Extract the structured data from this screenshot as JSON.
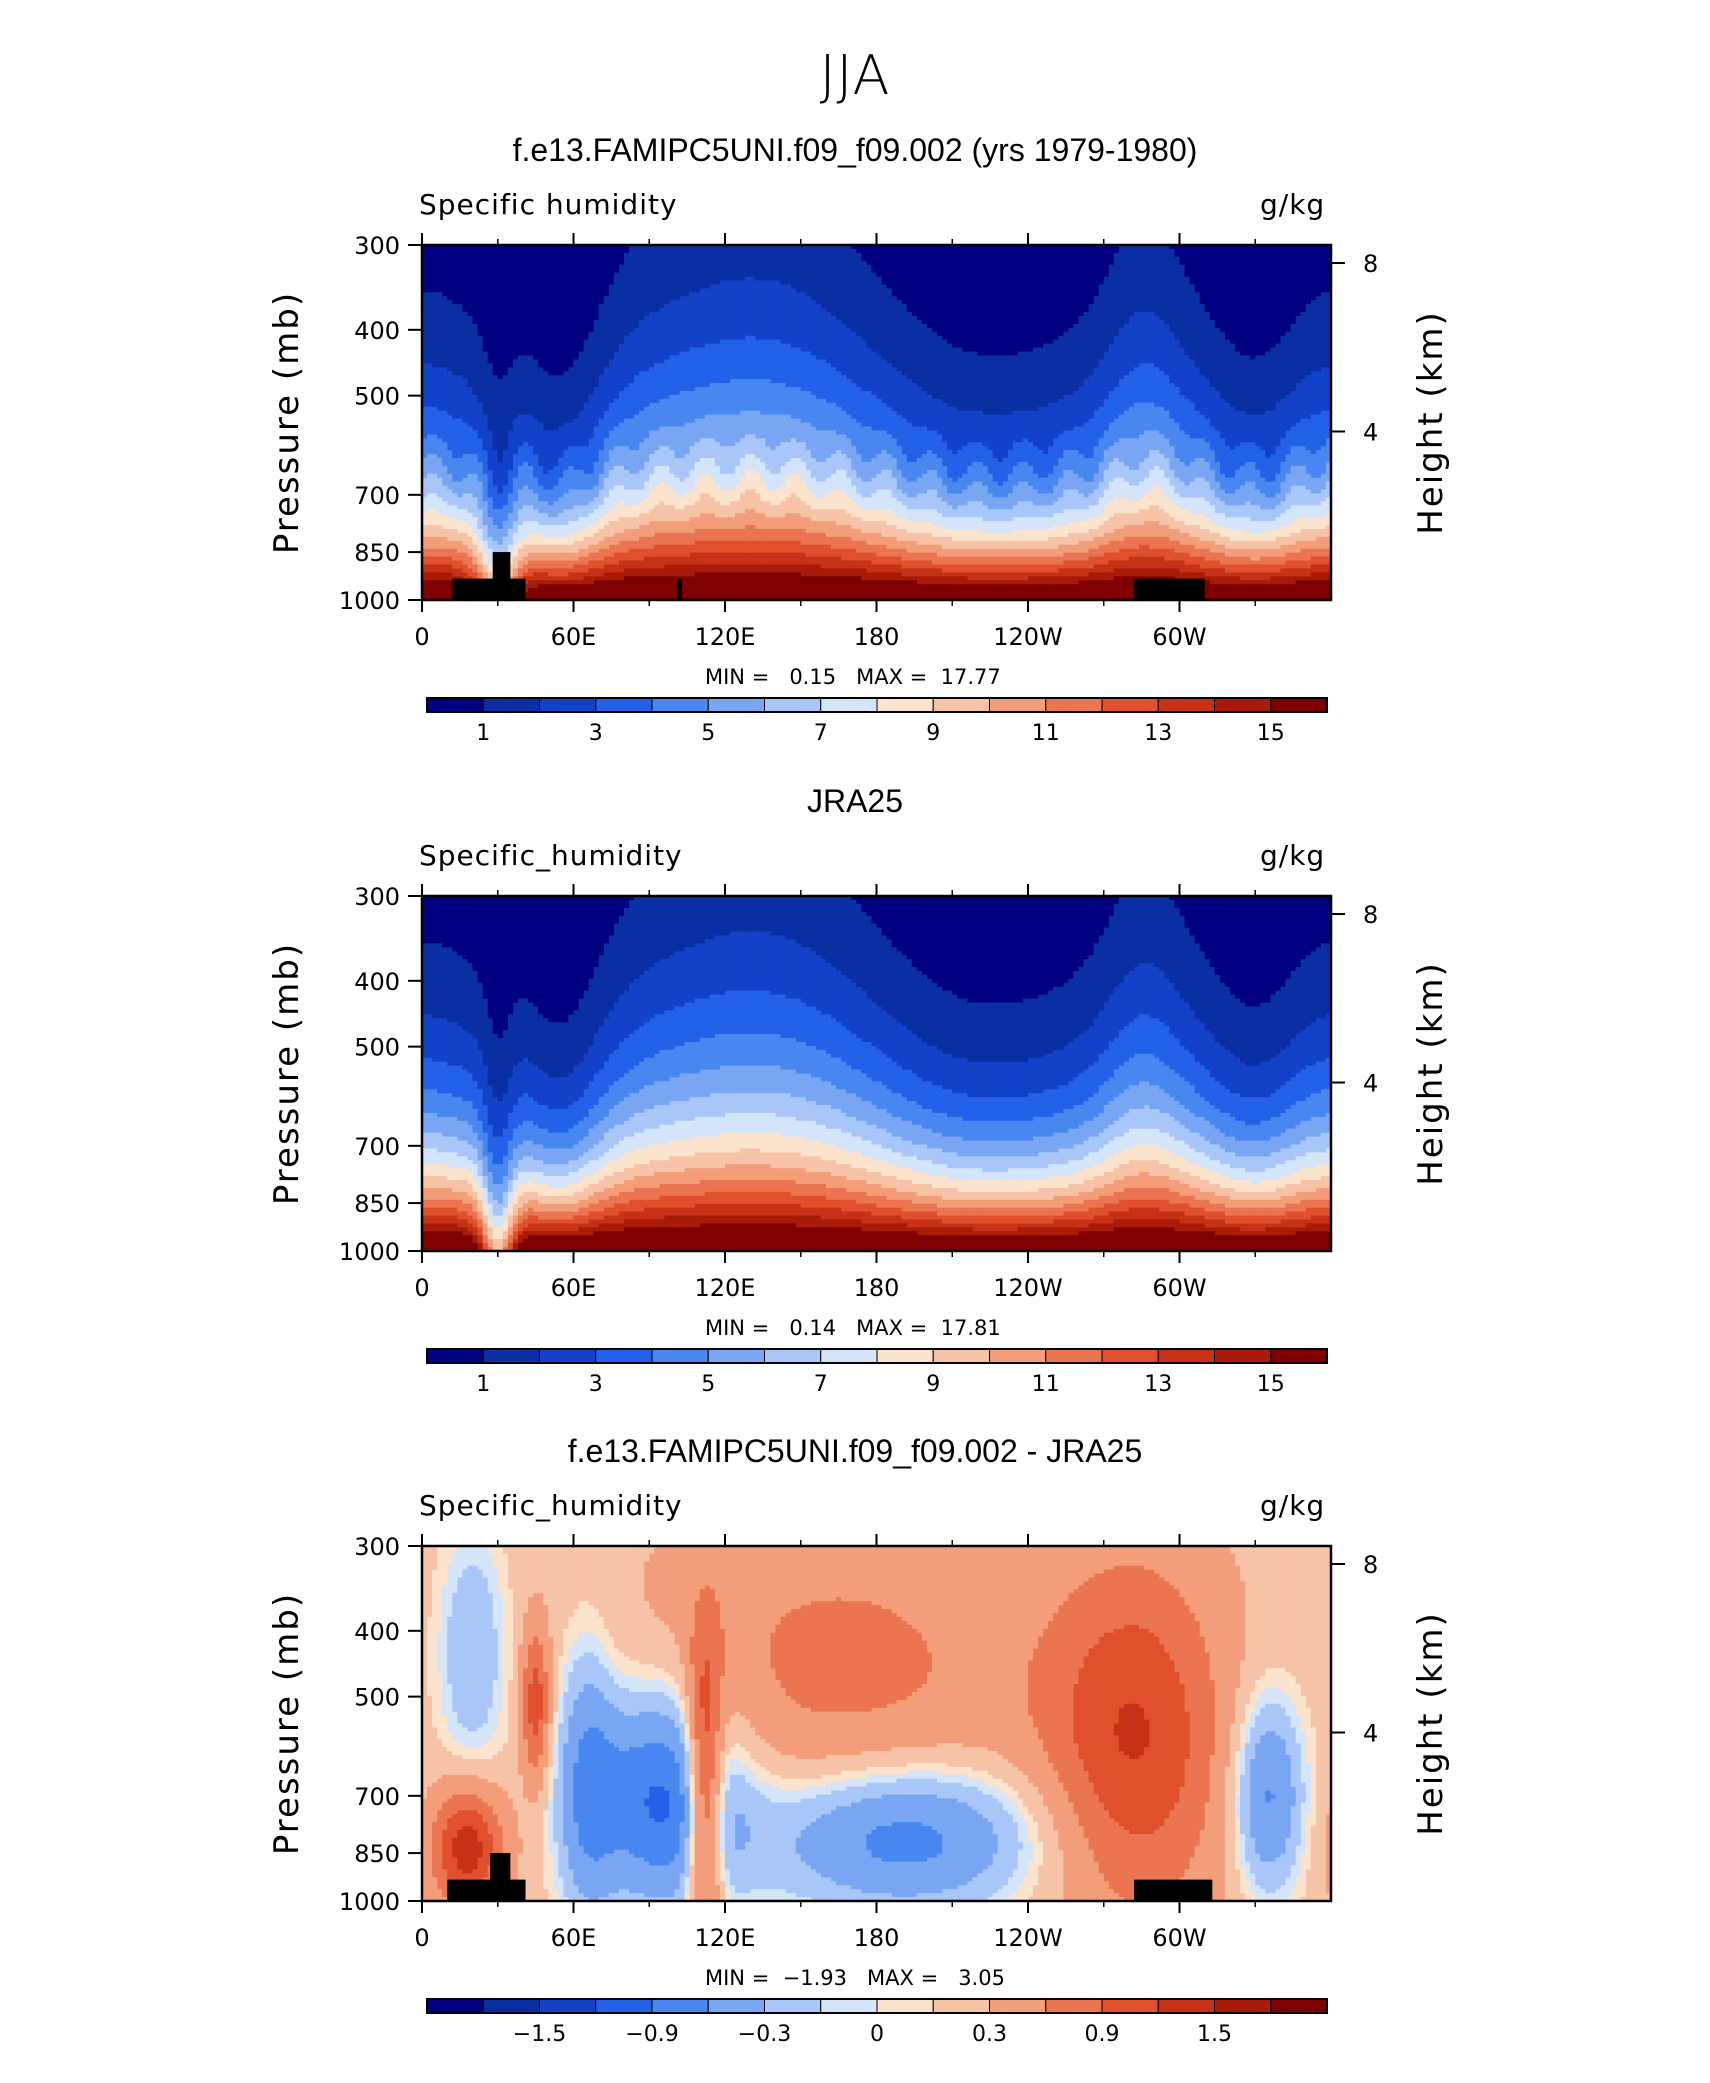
{
  "main_title": "JJA",
  "colors": {
    "seq": [
      "#000080",
      "#0a2fa3",
      "#1341c8",
      "#2362e8",
      "#4886f0",
      "#79a6f3",
      "#a8c6f7",
      "#d4e4f9",
      "#fbe3cd",
      "#f7c3a6",
      "#f39d7b",
      "#eb7550",
      "#e0502d",
      "#c73217",
      "#a81a09",
      "#7f0000"
    ],
    "div": [
      "#000080",
      "#0a2fa3",
      "#1341c8",
      "#2362e8",
      "#4886f0",
      "#79a6f3",
      "#a8c6f7",
      "#d4e4f9",
      "#fbe3cd",
      "#f7c3a6",
      "#f39d7b",
      "#eb7550",
      "#e0502d",
      "#c73217",
      "#a81a09",
      "#7f0000"
    ]
  },
  "panels": [
    {
      "title": "f.e13.FAMIPC5UNI.f09_f09.002 (yrs 1979-1980)",
      "variable_label": "Specific humidity",
      "units_label": "g/kg",
      "y_label": "Pressure (mb)",
      "y2_label": "Height (km)",
      "min_text": "MIN =   0.15",
      "max_text": "MAX =  17.77",
      "colorbar_labels": [
        "1",
        "3",
        "5",
        "7",
        "9",
        "11",
        "13",
        "15"
      ]
    },
    {
      "title": "JRA25",
      "variable_label": "Specific_humidity",
      "units_label": "g/kg",
      "y_label": "Pressure (mb)",
      "y2_label": "Height (km)",
      "min_text": "MIN =   0.14",
      "max_text": "MAX =  17.81",
      "colorbar_labels": [
        "1",
        "3",
        "5",
        "7",
        "9",
        "11",
        "13",
        "15"
      ]
    },
    {
      "title": "f.e13.FAMIPC5UNI.f09_f09.002 - JRA25",
      "variable_label": "Specific_humidity",
      "units_label": "g/kg",
      "y_label": "Pressure (mb)",
      "y2_label": "Height (km)",
      "min_text": "MIN =  −1.93",
      "max_text": "MAX =   3.05",
      "colorbar_labels": [
        "−1.5",
        "−0.9",
        "−0.3",
        "0",
        "0.3",
        "0.9",
        "1.5"
      ]
    }
  ],
  "chart_data": [
    {
      "type": "heatmap",
      "title": "f.e13.FAMIPC5UNI.f09_f09.002 (yrs 1979-1980)",
      "subtitle": "JJA",
      "xlabel": "",
      "ylabel": "Pressure (mb)",
      "y2label": "Height (km)",
      "x_tick_labels": [
        "0",
        "60E",
        "120E",
        "180",
        "120W",
        "60W"
      ],
      "x_tick_lons": [
        0,
        60,
        120,
        180,
        240,
        300
      ],
      "y_tick_labels": [
        "300",
        "400",
        "500",
        "700",
        "850",
        "1000"
      ],
      "y_tick_values": [
        300,
        400,
        500,
        700,
        850,
        1000
      ],
      "y2_tick_labels": [
        "8",
        "4"
      ],
      "y2_tick_values": [
        8,
        4
      ],
      "ylim": [
        1000,
        300
      ],
      "xlim": [
        0,
        360
      ],
      "min": 0.15,
      "max": 17.77,
      "contour_levels": [
        1,
        2,
        3,
        4,
        5,
        6,
        7,
        8,
        9,
        10,
        11,
        12,
        13,
        14,
        15
      ],
      "colorbar_labels": [
        "1",
        "3",
        "5",
        "7",
        "9",
        "11",
        "13",
        "15"
      ],
      "field": "specific_humidity_model"
    },
    {
      "type": "heatmap",
      "title": "JRA25",
      "xlabel": "",
      "ylabel": "Pressure (mb)",
      "y2label": "Height (km)",
      "x_tick_labels": [
        "0",
        "60E",
        "120E",
        "180",
        "120W",
        "60W"
      ],
      "x_tick_lons": [
        0,
        60,
        120,
        180,
        240,
        300
      ],
      "y_tick_labels": [
        "300",
        "400",
        "500",
        "700",
        "850",
        "1000"
      ],
      "y_tick_values": [
        300,
        400,
        500,
        700,
        850,
        1000
      ],
      "y2_tick_labels": [
        "8",
        "4"
      ],
      "y2_tick_values": [
        8,
        4
      ],
      "ylim": [
        1000,
        300
      ],
      "xlim": [
        0,
        360
      ],
      "min": 0.14,
      "max": 17.81,
      "contour_levels": [
        1,
        2,
        3,
        4,
        5,
        6,
        7,
        8,
        9,
        10,
        11,
        12,
        13,
        14,
        15
      ],
      "colorbar_labels": [
        "1",
        "3",
        "5",
        "7",
        "9",
        "11",
        "13",
        "15"
      ],
      "field": "specific_humidity_obs"
    },
    {
      "type": "heatmap",
      "title": "f.e13.FAMIPC5UNI.f09_f09.002 - JRA25",
      "xlabel": "",
      "ylabel": "Pressure (mb)",
      "y2label": "Height (km)",
      "x_tick_labels": [
        "0",
        "60E",
        "120E",
        "180",
        "120W",
        "60W"
      ],
      "x_tick_lons": [
        0,
        60,
        120,
        180,
        240,
        300
      ],
      "y_tick_labels": [
        "300",
        "400",
        "500",
        "700",
        "850",
        "1000"
      ],
      "y_tick_values": [
        300,
        400,
        500,
        700,
        850,
        1000
      ],
      "y2_tick_labels": [
        "8",
        "4"
      ],
      "y2_tick_values": [
        8,
        4
      ],
      "ylim": [
        1000,
        300
      ],
      "xlim": [
        0,
        360
      ],
      "min": -1.93,
      "max": 3.05,
      "contour_levels": [
        -1.8,
        -1.5,
        -1.2,
        -0.9,
        -0.6,
        -0.3,
        -0.1,
        0,
        0.1,
        0.3,
        0.6,
        0.9,
        1.2,
        1.5,
        1.8
      ],
      "colorbar_labels": [
        "−1.5",
        "−0.9",
        "−0.3",
        "0",
        "0.3",
        "0.9",
        "1.5"
      ],
      "field": "specific_humidity_difference"
    }
  ]
}
